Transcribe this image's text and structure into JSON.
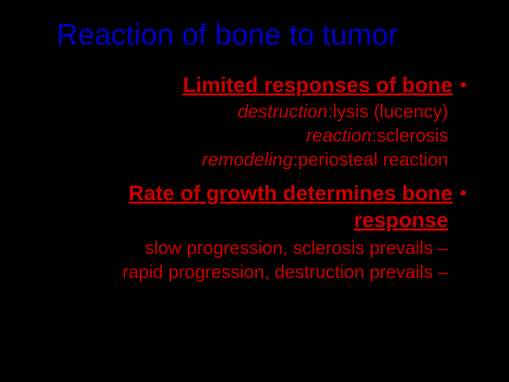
{
  "slide": {
    "title": "Reaction of bone to tumor",
    "bullet_mark": "•",
    "dash": "–",
    "section1": {
      "header": "Limited responses of bone",
      "line1_italic": "destruction",
      "line1_rest": ":lysis (lucency)",
      "line2_italic": "reaction",
      "line2_rest": ":sclerosis",
      "line3_italic": "remodeling",
      "line3_rest": ":periosteal reaction"
    },
    "section2": {
      "header_line1": "Rate of growth determines bone",
      "header_line2": "response",
      "line1": "slow progression, sclerosis prevails",
      "line2": "rapid progression, destruction prevails"
    },
    "colors": {
      "background": "#000000",
      "title_color": "#0000cc",
      "text_color": "#cc0000"
    },
    "typography": {
      "title_fontsize": 42,
      "header_fontsize": 30,
      "body_fontsize": 26,
      "font_family": "Arial"
    }
  }
}
